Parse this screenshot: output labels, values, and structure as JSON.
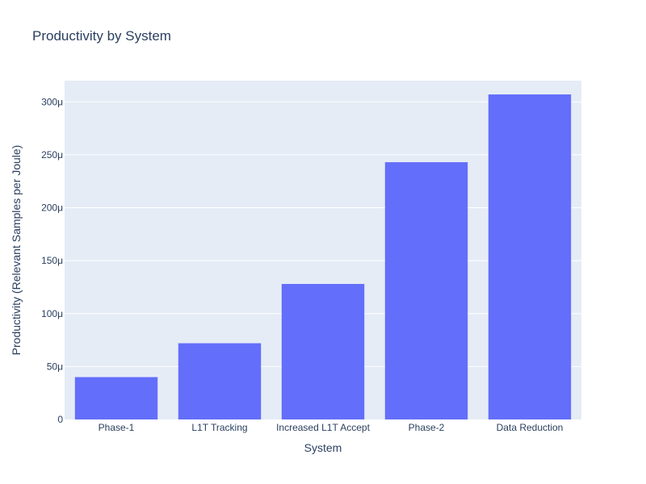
{
  "colors": {
    "plot_background": "#e5ecf6",
    "grid": "#ffffff",
    "bar": "#636efa",
    "text": "#2a3f5f"
  },
  "chart_data": {
    "type": "bar",
    "title": "Productivity by System",
    "xlabel": "System",
    "ylabel": "Productivity (Relevant Samples per Joule)",
    "categories": [
      "Phase-1",
      "L1T Tracking",
      "Increased L1T Accept",
      "Phase-2",
      "Data Reduction"
    ],
    "values": [
      4e-05,
      7.2e-05,
      0.000128,
      0.000243,
      0.000307
    ],
    "ylim": [
      0,
      0.00032
    ],
    "yticks": [
      0,
      5e-05,
      0.0001,
      0.00015,
      0.0002,
      0.00025,
      0.0003
    ],
    "ytick_labels": [
      "0",
      "50μ",
      "100μ",
      "150μ",
      "200μ",
      "250μ",
      "300μ"
    ],
    "grid": true,
    "legend": "none"
  }
}
